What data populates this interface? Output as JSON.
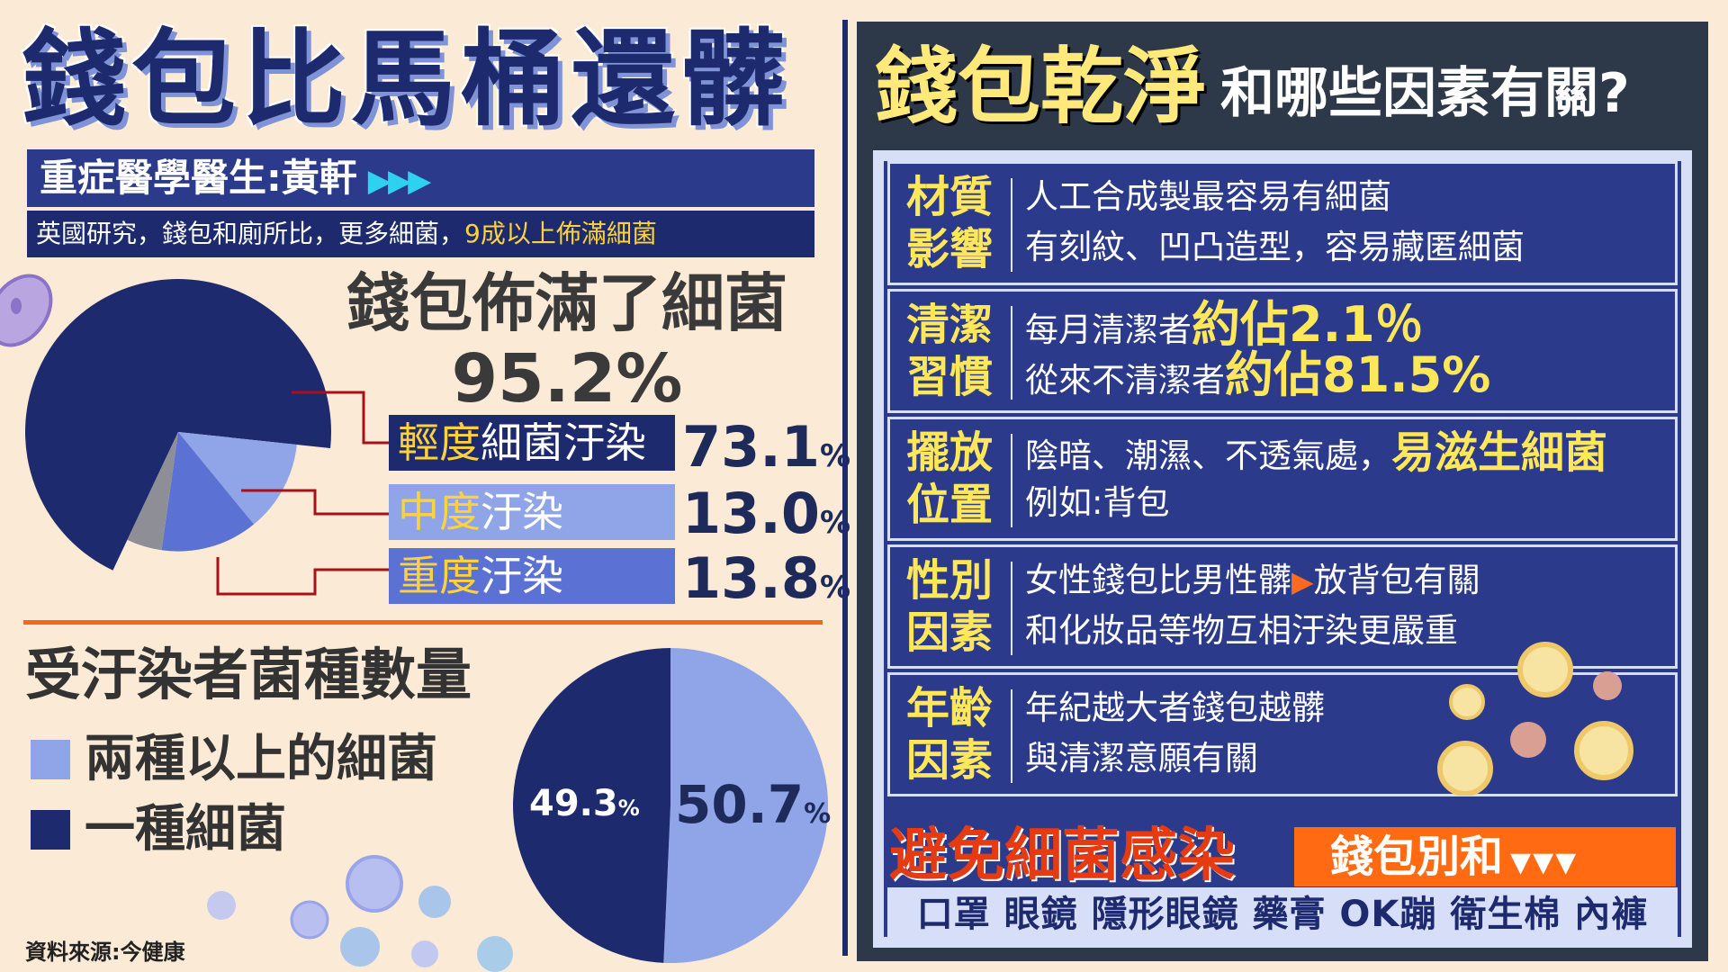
{
  "left": {
    "main_title": "錢包比馬桶還髒",
    "doctor": "重症醫學醫生:黃軒",
    "doctor_arrows": "▶▶▶",
    "research_text": "英國研究，錢包和廁所比，更多細菌，",
    "research_highlight": "9成以上佈滿細菌",
    "pie_title": "錢包佈滿了細菌",
    "pie_total": "95.2%",
    "legend": [
      {
        "prefix": "輕度",
        "label": "細菌汙染",
        "value": "73.1",
        "pct": "%"
      },
      {
        "prefix": "中度",
        "label": "汙染",
        "value": "13.0",
        "pct": "%"
      },
      {
        "prefix": "重度",
        "label": "汙染",
        "value": "13.8",
        "pct": "%"
      }
    ],
    "section2_title": "受汙染者菌種數量",
    "section2_legend": [
      "兩種以上的細菌",
      "一種細菌"
    ],
    "pie2_label_small": "49.3",
    "pie2_label_big": "50.7",
    "pct_sign": "%",
    "source": "資料來源:今健康"
  },
  "right": {
    "title_main": "錢包乾淨",
    "title_sub": "和哪些因素有關?",
    "rows": [
      {
        "label": "材質影響",
        "l1": "人工合成製最容易有細菌",
        "l2": "有刻紋、凹凸造型，容易藏匿細菌"
      },
      {
        "label": "清潔習慣",
        "l1a": "每月清潔者",
        "l1b": "約佔2.1％",
        "l2a": "從來不清潔者",
        "l2b": "約佔81.5%"
      },
      {
        "label": "擺放位置",
        "l1a": "陰暗、潮濕、不透氣處，",
        "l1b": "易滋生細菌",
        "l2": "例如:背包"
      },
      {
        "label": "性別因素",
        "l1a": "女性錢包比男性髒",
        "l1arrow": "▶",
        "l1b": "放背包有關",
        "l2": "和化妝品等物互相汙染更嚴重"
      },
      {
        "label": "年齡因素",
        "l1": "年紀越大者錢包越髒",
        "l2": "與清潔意願有關"
      }
    ],
    "avoid_title": "避免細菌感染",
    "avoid_tag": "錢包別和",
    "avoid_arrows": "▼▼▼",
    "items": "口罩 眼鏡 隱形眼鏡 藥膏 OK蹦 衛生棉 內褲"
  },
  "colors": {
    "navy": "#1e2a6e",
    "light_blue": "#8fa5e8",
    "mid_blue": "#5b72d4",
    "gray": "#8e8e96",
    "yellow": "#ffe75a",
    "orange": "#ff6a12",
    "background": "#fbebd6"
  },
  "chart_data": [
    {
      "type": "pie",
      "title": "錢包佈滿了細菌",
      "subtitle": "95.2%",
      "series": [
        {
          "name": "輕度細菌汙染",
          "value": 73.1,
          "color": "#1e2a6e"
        },
        {
          "name": "中度汙染",
          "value": 13.0,
          "color": "#8fa5e8"
        },
        {
          "name": "重度汙染",
          "value": 13.8,
          "color": "#5b72d4"
        }
      ],
      "uncontaminated_percent_of_wallets": 4.8,
      "uncontaminated_color": "#8e8e96"
    },
    {
      "type": "pie",
      "title": "受汙染者菌種數量",
      "series": [
        {
          "name": "兩種以上的細菌",
          "value": 50.7,
          "color": "#8fa5e8"
        },
        {
          "name": "一種細菌",
          "value": 49.3,
          "color": "#1e2a6e"
        }
      ]
    }
  ]
}
